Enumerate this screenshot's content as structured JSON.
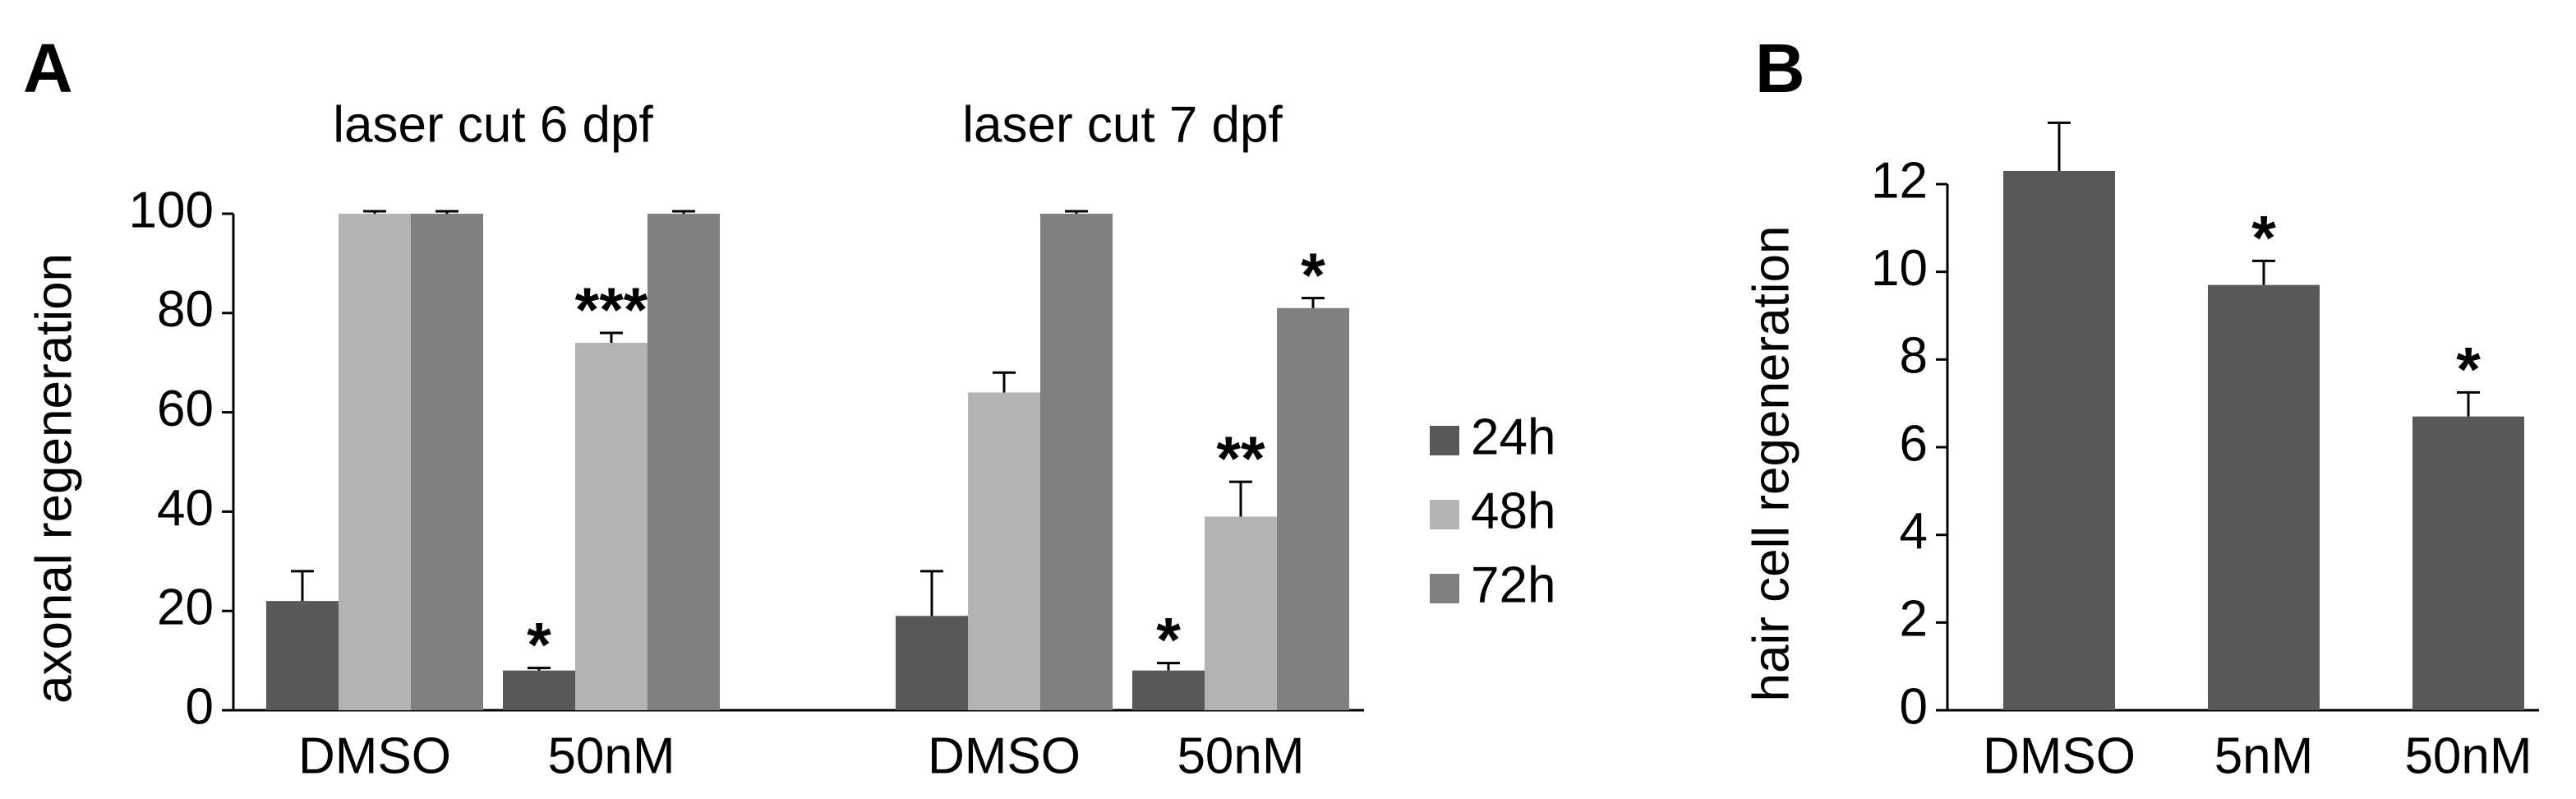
{
  "chart_data": [
    {
      "type": "bar",
      "panel": "A",
      "ylabel": "axonal regeneration",
      "groups": [
        "laser cut 6 dpf",
        "laser cut 7 dpf"
      ],
      "categories": [
        "DMSO",
        "50nM",
        "DMSO",
        "50nM"
      ],
      "ylim": [
        0,
        100
      ],
      "yticks": [
        0,
        20,
        40,
        60,
        80,
        100
      ],
      "series": [
        {
          "name": "24h",
          "color": "#595959",
          "values": [
            22,
            8,
            19,
            8
          ],
          "errors": [
            6,
            0.5,
            9,
            1.5
          ],
          "significance": [
            null,
            "*",
            null,
            "*"
          ]
        },
        {
          "name": "48h",
          "color": "#b3b3b3",
          "values": [
            100,
            74,
            64,
            39
          ],
          "errors": [
            0.5,
            2,
            4,
            7
          ],
          "significance": [
            null,
            "***",
            null,
            "**"
          ]
        },
        {
          "name": "72h",
          "color": "#808080",
          "values": [
            100,
            100,
            100,
            81
          ],
          "errors": [
            0.5,
            0.5,
            0.5,
            2
          ],
          "significance": [
            null,
            null,
            null,
            "*"
          ]
        }
      ],
      "legend": "right"
    },
    {
      "type": "bar",
      "panel": "B",
      "ylabel": "hair cell regeneration",
      "categories": [
        "DMSO",
        "5nM",
        "50nM"
      ],
      "ylim": [
        0,
        12
      ],
      "yticks": [
        0,
        2,
        4,
        6,
        8,
        10,
        12
      ],
      "series": [
        {
          "color": "#595959",
          "values": [
            12.3,
            9.7,
            6.7
          ],
          "errors": [
            1.1,
            0.55,
            0.55
          ],
          "significance": [
            null,
            "*",
            "*"
          ]
        }
      ]
    }
  ]
}
